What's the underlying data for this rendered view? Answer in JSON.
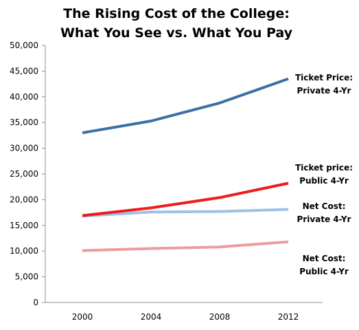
{
  "chart_data": {
    "type": "line",
    "title": [
      "The Rising Cost of the College:",
      "What You See vs. What You Pay"
    ],
    "xlabel": "",
    "ylabel": "",
    "categories": [
      "2000",
      "2004",
      "2008",
      "2012"
    ],
    "ylim": [
      0,
      50000
    ],
    "y_ticks": [
      0,
      5000,
      10000,
      15000,
      20000,
      25000,
      30000,
      35000,
      40000,
      45000,
      50000
    ],
    "y_tick_labels": [
      "0",
      "5,000",
      "10,000",
      "15,000",
      "20,000",
      "25,000",
      "30,000",
      "35,000",
      "40,000",
      "45,000",
      "50,000"
    ],
    "grid": false,
    "legend": "none",
    "series": [
      {
        "label_lines": [
          "Ticket Price:",
          "Private 4-Yr"
        ],
        "color": "#3d6fa5",
        "values": [
          33000,
          35300,
          38800,
          43500
        ]
      },
      {
        "label_lines": [
          "Ticket price:",
          "Public 4-Yr"
        ],
        "color": "#ee1c1c",
        "values": [
          16900,
          18400,
          20400,
          23200
        ]
      },
      {
        "label_lines": [
          "Net Cost:",
          "Private 4-Yr"
        ],
        "color": "#9cc2e8",
        "values": [
          16800,
          17600,
          17700,
          18100
        ]
      },
      {
        "label_lines": [
          "Net Cost:",
          "Public 4-Yr"
        ],
        "color": "#ec9c9c",
        "values": [
          10100,
          10500,
          10800,
          11800
        ]
      }
    ]
  }
}
